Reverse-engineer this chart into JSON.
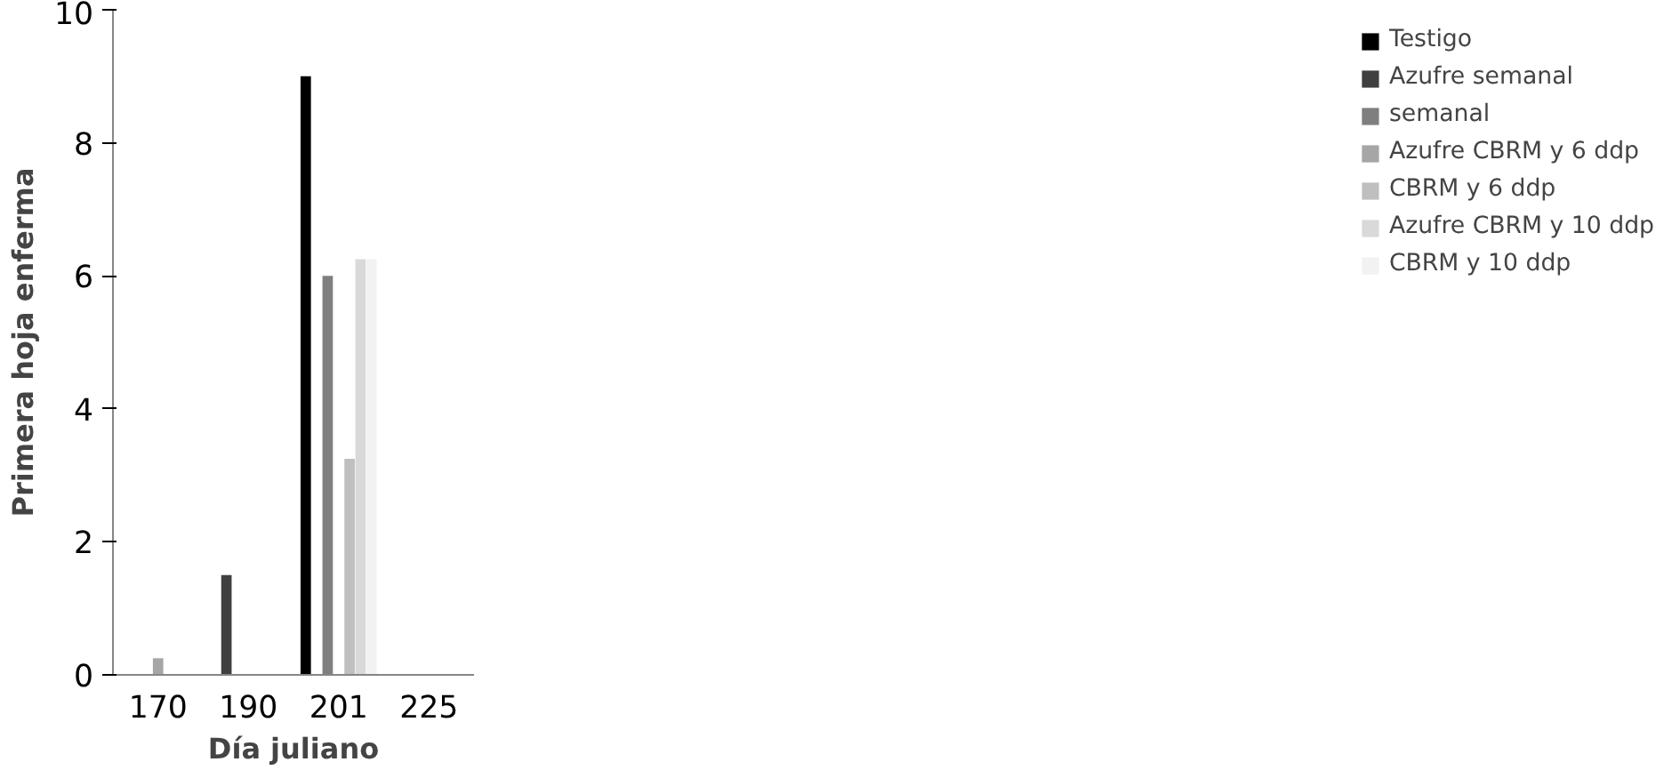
{
  "chart_data": {
    "type": "bar",
    "ylabel": "Primera hoja enferma",
    "xlabel": "Día juliano",
    "categories": [
      "170",
      "190",
      "201",
      "225"
    ],
    "series": [
      {
        "name": "Testigo",
        "color": "#000000",
        "values": [
          0,
          0,
          9,
          0
        ]
      },
      {
        "name": "Azufre semanal",
        "color": "#404040",
        "values": [
          0,
          1.5,
          0,
          0
        ]
      },
      {
        "name": "semanal",
        "color": "#7f7f7f",
        "values": [
          0,
          0,
          6,
          0
        ]
      },
      {
        "name": "Azufre CBRM y 6 ddp",
        "color": "#a6a6a6",
        "values": [
          0.25,
          0,
          0,
          0
        ]
      },
      {
        "name": "CBRM y 6 ddp",
        "color": "#bfbfbf",
        "values": [
          0,
          0,
          3.25,
          0
        ]
      },
      {
        "name": "Azufre CBRM y 10 ddp",
        "color": "#d9d9d9",
        "values": [
          0,
          0,
          6.25,
          0
        ]
      },
      {
        "name": "CBRM y 10 ddp",
        "color": "#f2f2f2",
        "values": [
          0,
          0,
          6.25,
          0
        ]
      }
    ],
    "ylim": [
      0,
      10
    ],
    "yticks": [
      0,
      2,
      4,
      6,
      8,
      10
    ],
    "grid": false,
    "legend": "right"
  }
}
